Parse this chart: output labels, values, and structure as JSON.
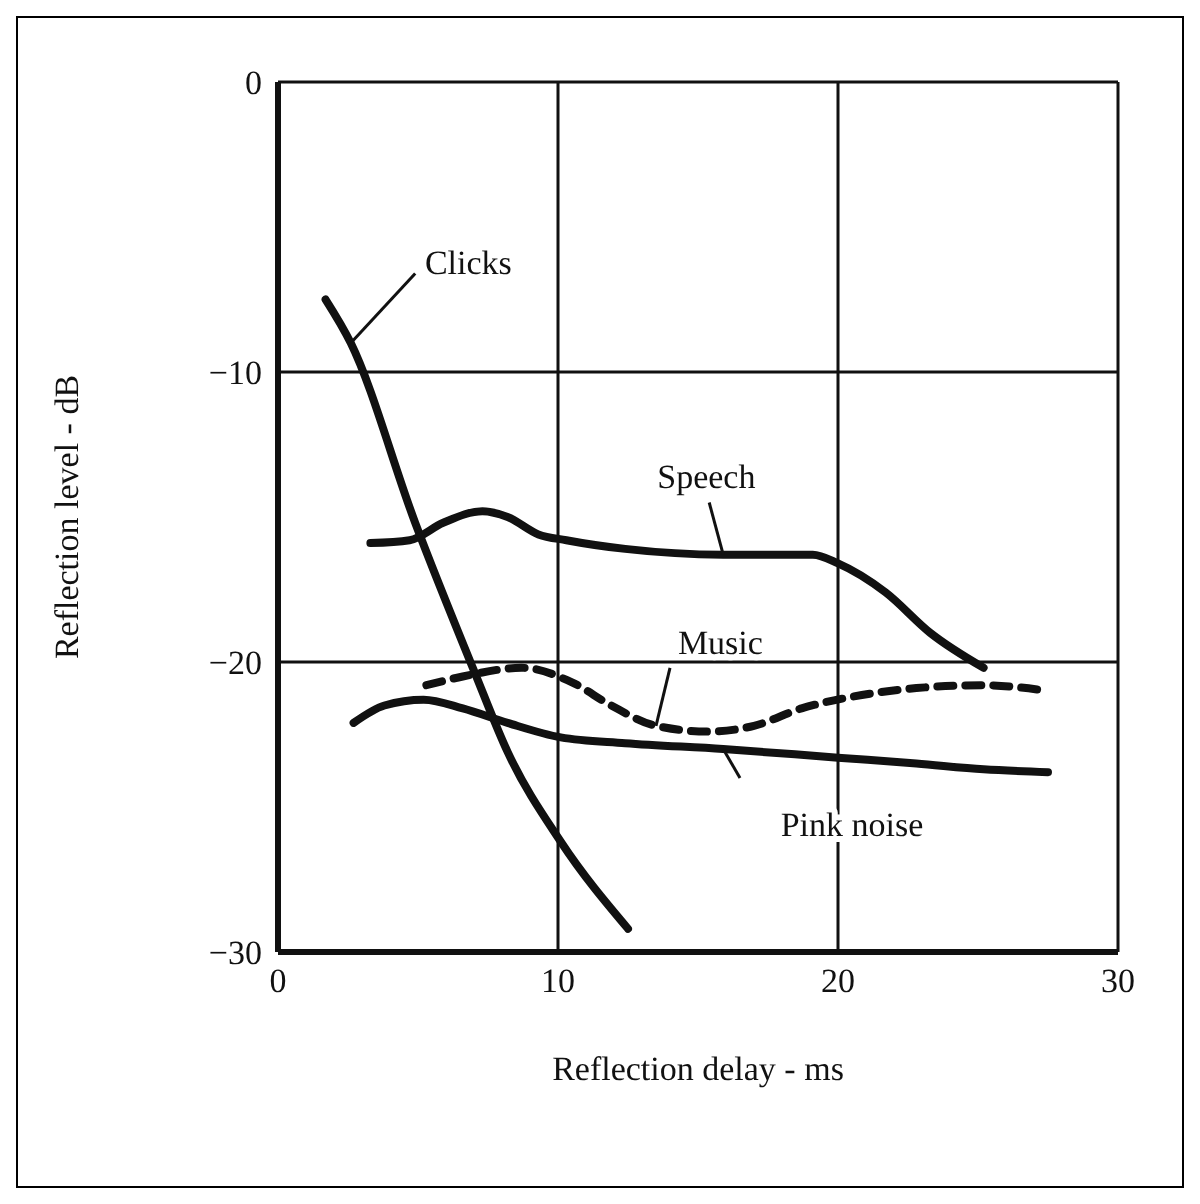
{
  "chart_data": {
    "type": "line",
    "xlabel": "Reflection delay - ms",
    "ylabel": "Reflection level - dB",
    "xlim": [
      0,
      30
    ],
    "xticks": [
      0,
      10,
      20,
      30
    ],
    "ylim": [
      -30,
      0
    ],
    "yticks": [
      0,
      -10,
      -20,
      -30
    ],
    "grid": true,
    "legend": false,
    "marker": "none",
    "series": [
      {
        "name": "Clicks",
        "color": "#111111",
        "line_style": "solid",
        "x": [
          1.7,
          2.6,
          4.9,
          7.0,
          8.2,
          10.1,
          12.5
        ],
        "values": [
          -7.5,
          -9.0,
          -15.2,
          -20.3,
          -23.1,
          -26.2,
          -29.2
        ]
      },
      {
        "name": "Speech",
        "color": "#111111",
        "line_style": "solid",
        "x": [
          3.3,
          4.7,
          5.9,
          7.3,
          8.2,
          9.3,
          10.3,
          12.4,
          15.9,
          19.1,
          20.0,
          21.7,
          23.3,
          25.2
        ],
        "values": [
          -15.9,
          -15.8,
          -15.2,
          -14.8,
          -15.0,
          -15.6,
          -15.8,
          -16.1,
          -16.3,
          -16.3,
          -16.6,
          -17.6,
          -19.0,
          -20.2
        ]
      },
      {
        "name": "Music",
        "color": "#111111",
        "line_style": "dashed",
        "x": [
          5.3,
          6.6,
          8.7,
          10.5,
          11.9,
          13.5,
          15.4,
          17.0,
          18.7,
          20.5,
          22.8,
          25.2,
          27.5
        ],
        "values": [
          -20.8,
          -20.5,
          -20.2,
          -20.7,
          -21.5,
          -22.2,
          -22.4,
          -22.2,
          -21.6,
          -21.2,
          -20.9,
          -20.8,
          -21.0
        ]
      },
      {
        "name": "Pink noise",
        "color": "#111111",
        "line_style": "solid",
        "x": [
          2.7,
          3.8,
          5.2,
          6.6,
          8.2,
          10.1,
          12.4,
          15.9,
          20.0,
          22.8,
          25.2,
          27.5
        ],
        "values": [
          -22.1,
          -21.5,
          -21.3,
          -21.6,
          -22.1,
          -22.6,
          -22.8,
          -23.0,
          -23.3,
          -23.5,
          -23.7,
          -23.8
        ]
      }
    ]
  }
}
